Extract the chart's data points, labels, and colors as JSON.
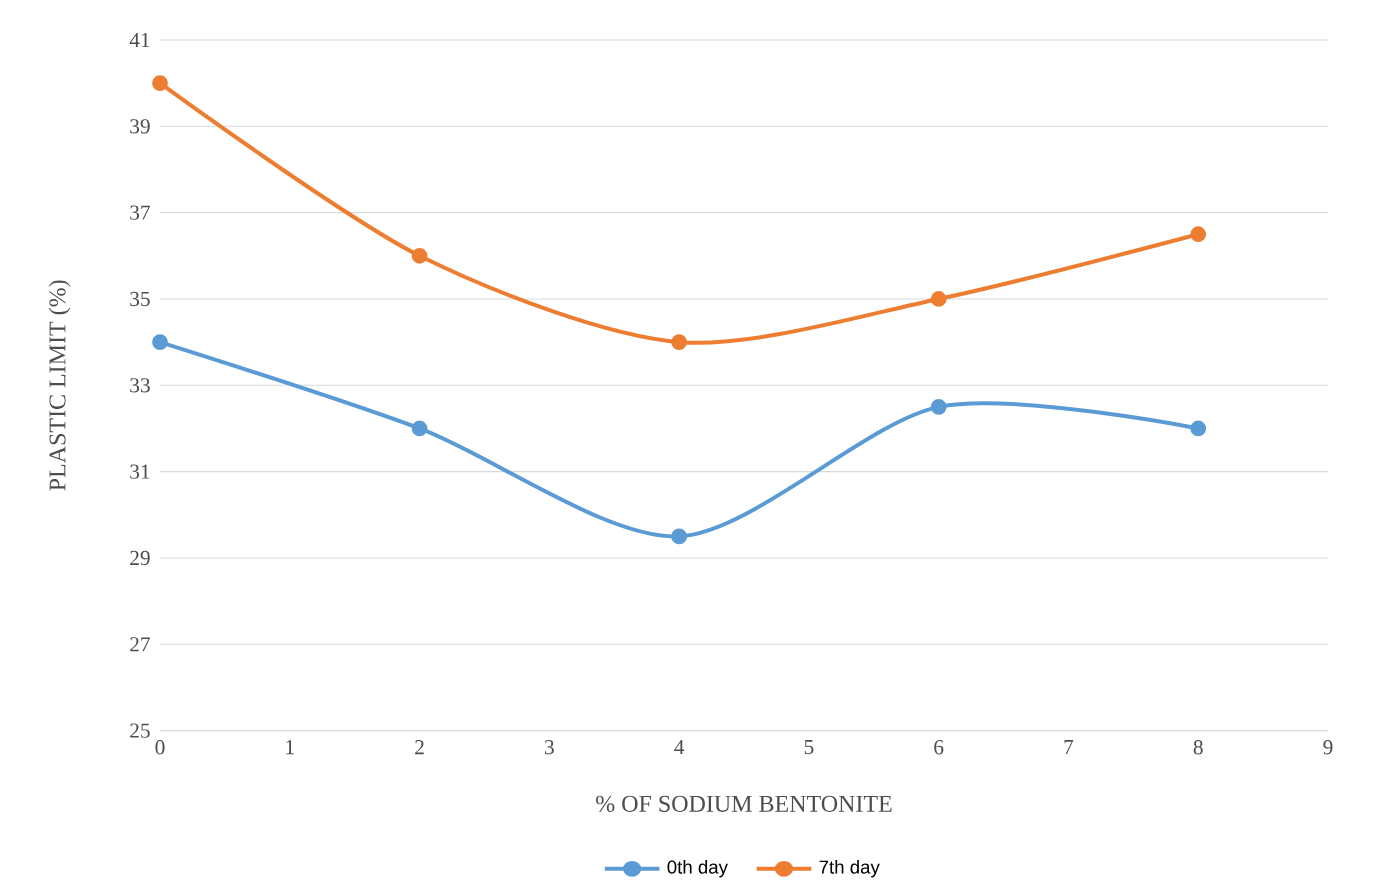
{
  "chart_data": {
    "type": "line",
    "xlabel": "% OF SODIUM BENTONITE",
    "ylabel": "PLASTIC LIMIT (%)",
    "x": [
      0,
      2,
      4,
      6,
      8
    ],
    "series": [
      {
        "name": "0th day",
        "color": "#5b9bd5",
        "values": [
          34,
          32,
          29.5,
          32.5,
          32
        ]
      },
      {
        "name": "7th day",
        "color": "#ed7d31",
        "values": [
          40,
          36,
          34,
          35,
          36.5
        ]
      }
    ],
    "xlim": [
      0,
      9
    ],
    "xticks": [
      0,
      1,
      2,
      3,
      4,
      5,
      6,
      7,
      8,
      9
    ],
    "ylim": [
      25,
      41
    ],
    "yticks": [
      25,
      27,
      29,
      31,
      33,
      35,
      37,
      39,
      41
    ],
    "grid": "y",
    "legend": "bottom",
    "marker": "circle",
    "line_style": "solid"
  }
}
